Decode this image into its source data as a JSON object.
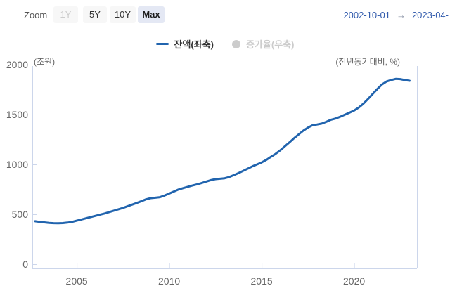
{
  "toolbar": {
    "zoom_label": "Zoom",
    "buttons": [
      {
        "label": "1Y",
        "state": "disabled"
      },
      {
        "label": "5Y",
        "state": "normal"
      },
      {
        "label": "10Y",
        "state": "normal"
      },
      {
        "label": "Max",
        "state": "selected"
      }
    ],
    "range": {
      "start": "2002-10-01",
      "arrow": "→",
      "end": "2023-04-"
    }
  },
  "legend": {
    "items": [
      {
        "label": "잔액(좌축)",
        "marker": "line",
        "color": "#2164ae",
        "enabled": true
      },
      {
        "label": "증가율(우축)",
        "marker": "circle",
        "color": "#cccccc",
        "enabled": false
      }
    ]
  },
  "colors": {
    "line": "#2164ae",
    "axis": "#ccd6eb",
    "tick_text": "#666666",
    "date_text": "#335cad",
    "selected_button_bg": "#e4e8f4",
    "disabled_text": "#cccccc"
  },
  "chart_data": {
    "type": "line",
    "title": "",
    "ylabel_left": "(조원)",
    "ylabel_right": "(전년동기대비, %)",
    "x_ticks": [
      2005,
      2010,
      2015,
      2020
    ],
    "y_ticks": [
      0,
      500,
      1000,
      1500,
      2000
    ],
    "x_domain": [
      2002.6,
      2023.4
    ],
    "y_domain": [
      0,
      2000
    ],
    "grid": "off",
    "legend_position": "top-center",
    "series": [
      {
        "name": "잔액(좌축)",
        "axis": "left",
        "visible": true,
        "color": "#2164ae",
        "unit": "조원",
        "x_start": 2002.75,
        "x_step": 0.25,
        "values": [
          430,
          424,
          419,
          414,
          411,
          410,
          412,
          417,
          424,
          436,
          448,
          460,
          472,
          484,
          496,
          508,
          522,
          536,
          550,
          564,
          580,
          597,
          614,
          632,
          650,
          662,
          666,
          672,
          688,
          708,
          728,
          748,
          762,
          775,
          788,
          800,
          813,
          828,
          842,
          852,
          856,
          861,
          874,
          893,
          913,
          935,
          958,
          980,
          1000,
          1020,
          1045,
          1075,
          1105,
          1140,
          1180,
          1220,
          1262,
          1300,
          1338,
          1368,
          1392,
          1400,
          1409,
          1427,
          1448,
          1460,
          1478,
          1498,
          1518,
          1540,
          1570,
          1608,
          1655,
          1705,
          1755,
          1800,
          1830,
          1846,
          1857,
          1855,
          1845,
          1838
        ]
      },
      {
        "name": "증가율(우축)",
        "axis": "right",
        "visible": false,
        "color": "#cccccc",
        "unit": "%",
        "values": []
      }
    ]
  }
}
